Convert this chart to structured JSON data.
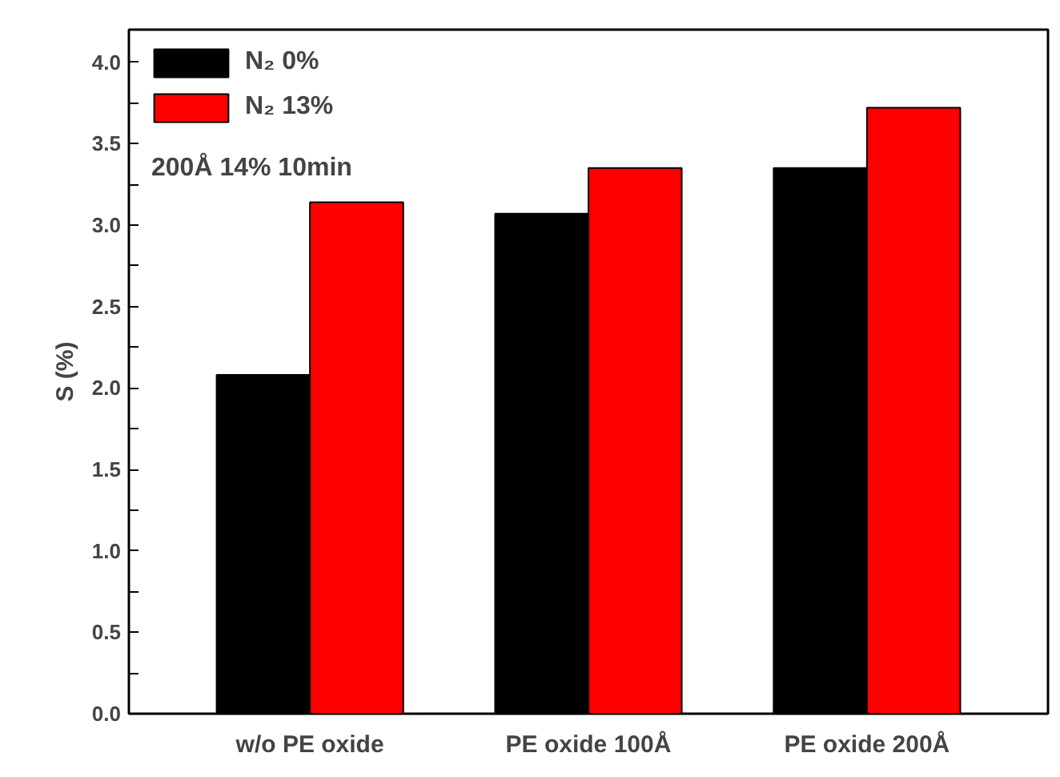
{
  "chart_data": {
    "type": "bar",
    "ylabel": "S (%)",
    "categories": [
      "w/o PE oxide",
      "PE oxide 100Å",
      "PE oxide 200Å"
    ],
    "series": [
      {
        "name": "N₂ 0%",
        "color": "#000000",
        "values": [
          2.08,
          3.07,
          3.35
        ]
      },
      {
        "name": "N₂ 13%",
        "color": "#ff0000",
        "values": [
          3.14,
          3.35,
          3.72
        ]
      }
    ],
    "ylim": [
      0,
      4.2
    ],
    "yticks": [
      {
        "value": 0,
        "label": "0.0"
      },
      {
        "value": 0.25,
        "label": null
      },
      {
        "value": 0.5,
        "label": "0.5"
      },
      {
        "value": 0.75,
        "label": null
      },
      {
        "value": 1,
        "label": "1.0"
      },
      {
        "value": 1.25,
        "label": null
      },
      {
        "value": 1.5,
        "label": "1.5"
      },
      {
        "value": 1.75,
        "label": null
      },
      {
        "value": 2,
        "label": "2.0"
      },
      {
        "value": 2.25,
        "label": null
      },
      {
        "value": 2.5,
        "label": "2.5"
      },
      {
        "value": 2.75,
        "label": null
      },
      {
        "value": 3,
        "label": "3.0"
      },
      {
        "value": 3.25,
        "label": null
      },
      {
        "value": 3.5,
        "label": "3.5"
      },
      {
        "value": 3.75,
        "label": null
      },
      {
        "value": 4,
        "label": "4.0"
      }
    ],
    "annotations": [
      "200Å 14% 10min"
    ],
    "legend": "top left",
    "grid": false
  }
}
